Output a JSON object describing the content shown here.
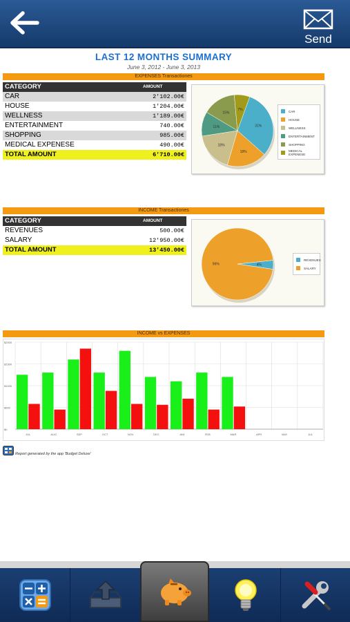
{
  "header": {
    "send_label": "Send"
  },
  "report": {
    "title": "LAST 12 MONTHS SUMMARY",
    "subtitle": "June 3, 2012 - June 3, 2013"
  },
  "expenses": {
    "band_title": "EXPENSES Transactiones",
    "col_category": "CATEGORY",
    "col_amount": "AMOUNT",
    "rows": [
      {
        "category": "CAR",
        "amount": "2'102.00€"
      },
      {
        "category": "HOUSE",
        "amount": "1'204.00€"
      },
      {
        "category": "WELLNESS",
        "amount": "1'189.00€"
      },
      {
        "category": "ENTERTAINMENT",
        "amount": "740.00€"
      },
      {
        "category": "SHOPPING",
        "amount": "985.00€"
      },
      {
        "category": "MEDICAL EXPENESE",
        "amount": "490.00€"
      }
    ],
    "total_label": "TOTAL AMOUNT",
    "total_value": "6'710.00€"
  },
  "income": {
    "band_title": "INCOME Transactiones",
    "col_category": "CATEGORY",
    "col_amount": "AMOUNT",
    "rows": [
      {
        "category": "REVENUES",
        "amount": "500.00€"
      },
      {
        "category": "SALARY",
        "amount": "12'950.00€"
      }
    ],
    "total_label": "TOTAL AMOUNT",
    "total_value": "13'450.00€"
  },
  "comparison": {
    "band_title": "INCOME vs EXPENSES"
  },
  "credit": {
    "text": "Report generated by the app 'Budget Deluxe'"
  },
  "tabs": [
    {
      "name": "calculator",
      "icon": "calculator-icon"
    },
    {
      "name": "upload",
      "icon": "upload-tray-icon"
    },
    {
      "name": "savings",
      "icon": "piggy-bank-icon"
    },
    {
      "name": "tips",
      "icon": "lightbulb-icon"
    },
    {
      "name": "settings",
      "icon": "wrench-screwdriver-icon"
    }
  ],
  "chart_data": [
    {
      "type": "pie",
      "categories": [
        "CAR",
        "HOUSE",
        "WELLNESS",
        "ENTERTAINMENT",
        "SHOPPING",
        "MEDICAL EXPENESE"
      ],
      "values": [
        31,
        18,
        18,
        11,
        15,
        7
      ],
      "slice_labels": [
        "31%",
        "18%",
        "18%",
        "11%",
        "15%",
        "7%"
      ],
      "colors": [
        "#4bafc9",
        "#eda12b",
        "#c9bf8d",
        "#4f9a82",
        "#8a9b4e",
        "#a19a1a"
      ],
      "legend": "right"
    },
    {
      "type": "pie",
      "categories": [
        "REVENUES",
        "SALARY"
      ],
      "values": [
        4,
        96
      ],
      "slice_labels": [
        "4%",
        "96%"
      ],
      "colors": [
        "#4bafc9",
        "#eda12b"
      ],
      "legend": "right"
    },
    {
      "type": "bar",
      "categories": [
        "JUL",
        "AUG",
        "SEP",
        "OCT",
        "NOV",
        "DEC",
        "JAN",
        "FEB",
        "MAR",
        "APR",
        "MAY",
        "JUL"
      ],
      "series": [
        {
          "values": [
            1250,
            1300,
            1600,
            1300,
            1800,
            1200,
            1100,
            1300,
            1200,
            0,
            0,
            0
          ],
          "color": "#19f019"
        },
        {
          "values": [
            580,
            450,
            1850,
            880,
            580,
            560,
            700,
            450,
            520,
            0,
            0,
            0
          ],
          "color": "#f51010"
        }
      ],
      "y_ticks": [
        "$0",
        "$500",
        "$1000",
        "$1500",
        "$2000"
      ],
      "ylim": [
        0,
        2000
      ],
      "grid": true
    }
  ]
}
